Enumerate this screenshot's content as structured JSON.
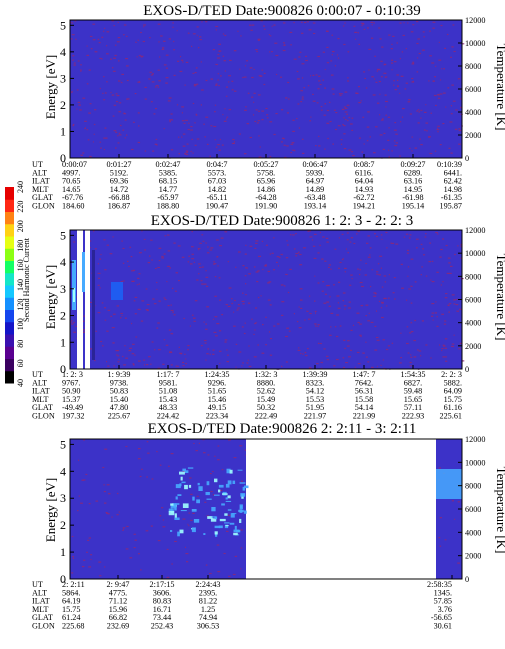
{
  "colorbar": {
    "label": "Second Harmonic Current",
    "ticks": [
      "40",
      "60",
      "80",
      "100",
      "120",
      "140",
      "160",
      "180",
      "200",
      "220",
      "240"
    ],
    "colors": [
      "#000000",
      "#3a0060",
      "#5a0090",
      "#3a10b0",
      "#1414c8",
      "#1446ee",
      "#1490ff",
      "#14c8ff",
      "#14e6c8",
      "#14ff64",
      "#8cff14",
      "#e6ff14",
      "#ffd214",
      "#ff8214",
      "#ff2814",
      "#e60000"
    ]
  },
  "colors": {
    "background": "#3c32c8",
    "speckle": "#8c2878",
    "bright": "#46aaff",
    "cyan": "#a0ffff",
    "gap": "#ffffff"
  },
  "panels": [
    {
      "title": "EXOS-D/TED   Date:900826  0:00:07 - 0:10:39",
      "ylabel": "Energy [eV]",
      "y2label": "Temperature [K]",
      "yticks": [
        "0",
        "1",
        "2",
        "3",
        "4",
        "5"
      ],
      "y2ticks": [
        "0",
        "2000",
        "4000",
        "6000",
        "8000",
        "10000",
        "12000"
      ],
      "rows": [
        {
          "label": "UT",
          "values": [
            "0:00:07",
            "0:01:27",
            "0:02:47",
            "0:04:7",
            "0:05:27",
            "0:06:47",
            "0:08:7",
            "0:09:27",
            "0:10:39"
          ]
        },
        {
          "label": "ALT",
          "values": [
            "4997.",
            "5192.",
            "5385.",
            "5573.",
            "5758.",
            "5939.",
            "6116.",
            "6289.",
            "6441."
          ]
        },
        {
          "label": "ILAT",
          "values": [
            "70.65",
            "69.36",
            "68.15",
            "67.03",
            "65.96",
            "64.97",
            "64.04",
            "63.16",
            "62.42"
          ]
        },
        {
          "label": "MLT",
          "values": [
            "14.65",
            "14.72",
            "14.77",
            "14.82",
            "14.86",
            "14.89",
            "14.93",
            "14.95",
            "14.98"
          ]
        },
        {
          "label": "GLAT",
          "values": [
            "-67.76",
            "-66.88",
            "-65.97",
            "-65.11",
            "-64.28",
            "-63.48",
            "-62.72",
            "-61.98",
            "-61.35"
          ]
        },
        {
          "label": "GLON",
          "values": [
            "184.60",
            "186.87",
            "188.80",
            "190.47",
            "191.90",
            "193.14",
            "194.21",
            "195.14",
            "195.87"
          ]
        }
      ]
    },
    {
      "title": "EXOS-D/TED   Date:900826  1: 2: 3 - 2: 2: 3",
      "ylabel": "Energy [eV]",
      "y2label": "Temperature [K]",
      "yticks": [
        "0",
        "1",
        "2",
        "3",
        "4",
        "5"
      ],
      "y2ticks": [
        "0",
        "2000",
        "4000",
        "6000",
        "8000",
        "10000",
        "12000"
      ],
      "rows": [
        {
          "label": "UT",
          "values": [
            "1: 2: 3",
            "1: 9:39",
            "1:17: 7",
            "1:24:35",
            "1:32: 3",
            "1:39:39",
            "1:47: 7",
            "1:54:35",
            "2: 2: 3"
          ]
        },
        {
          "label": "ALT",
          "values": [
            "9767.",
            "9738.",
            "9581.",
            "9296.",
            "8880.",
            "8323.",
            "7642.",
            "6827.",
            "5882."
          ]
        },
        {
          "label": "ILAT",
          "values": [
            "50.90",
            "50.83",
            "51.08",
            "51.65",
            "52.62",
            "54.12",
            "56.31",
            "59.48",
            "64.09"
          ]
        },
        {
          "label": "MLT",
          "values": [
            "15.37",
            "15.40",
            "15.43",
            "15.46",
            "15.49",
            "15.53",
            "15.58",
            "15.65",
            "15.75"
          ]
        },
        {
          "label": "GLAT",
          "values": [
            "-49.49",
            "47.80",
            "48.33",
            "49.15",
            "50.32",
            "51.95",
            "54.14",
            "57.11",
            "61.16"
          ]
        },
        {
          "label": "GLON",
          "values": [
            "197.32",
            "225.67",
            "224.42",
            "223.34",
            "222.49",
            "221.97",
            "221.99",
            "222.93",
            "225.61"
          ]
        }
      ]
    },
    {
      "title": "EXOS-D/TED   Date:900826  2: 2:11 - 3: 2:11",
      "ylabel": "Energy [eV]",
      "y2label": "Temperature [K]",
      "yticks": [
        "0",
        "1",
        "2",
        "3",
        "4",
        "5"
      ],
      "y2ticks": [
        "0",
        "2000",
        "4000",
        "6000",
        "8000",
        "10000",
        "12000"
      ],
      "rows": [
        {
          "label": "UT",
          "values": [
            "2: 2:11",
            "2: 9:47",
            "2:17:15",
            "2:24:43",
            "2:58:35"
          ]
        },
        {
          "label": "ALT",
          "values": [
            "5864.",
            "4775.",
            "3606.",
            "2395.",
            "1345."
          ]
        },
        {
          "label": "ILAT",
          "values": [
            "64.19",
            "71.12",
            "80.83",
            "81.22",
            "57.85"
          ]
        },
        {
          "label": "MLT",
          "values": [
            "15.75",
            "15.96",
            "16.71",
            "1.25",
            "3.76"
          ]
        },
        {
          "label": "GLAT",
          "values": [
            "61.24",
            "66.82",
            "73.44",
            "74.94",
            "-56.65"
          ]
        },
        {
          "label": "GLON",
          "values": [
            "225.68",
            "232.69",
            "252.43",
            "306.53",
            "30.61"
          ]
        }
      ]
    }
  ],
  "chart_data": [
    {
      "type": "heatmap",
      "title": "EXOS-D/TED   Date:900826  0:00:07 - 0:10:39",
      "xlabel": "UT",
      "ylabel": "Energy [eV]",
      "y2label": "Temperature [K]",
      "ylim": [
        0,
        5.2
      ],
      "y2lim": [
        0,
        12000
      ],
      "x": [
        "0:00:07",
        "0:01:27",
        "0:02:47",
        "0:04:7",
        "0:05:27",
        "0:06:47",
        "0:08:7",
        "0:09:27",
        "0:10:39"
      ]
    },
    {
      "type": "heatmap",
      "title": "EXOS-D/TED   Date:900826  1: 2: 3 - 2: 2: 3",
      "xlabel": "UT",
      "ylabel": "Energy [eV]",
      "y2label": "Temperature [K]",
      "ylim": [
        0,
        5.2
      ],
      "y2lim": [
        0,
        12000
      ],
      "x": [
        "1: 2: 3",
        "1: 9:39",
        "1:17: 7",
        "1:24:35",
        "1:32: 3",
        "1:39:39",
        "1:47: 7",
        "1:54:35",
        "2: 2: 3"
      ]
    },
    {
      "type": "heatmap",
      "title": "EXOS-D/TED   Date:900826  2: 2:11 - 3: 2:11",
      "xlabel": "UT",
      "ylabel": "Energy [eV]",
      "y2label": "Temperature [K]",
      "ylim": [
        0,
        5.2
      ],
      "y2lim": [
        0,
        12000
      ],
      "x": [
        "2: 2:11",
        "2: 9:47",
        "2:17:15",
        "2:24:43",
        "2:58:35"
      ]
    }
  ]
}
